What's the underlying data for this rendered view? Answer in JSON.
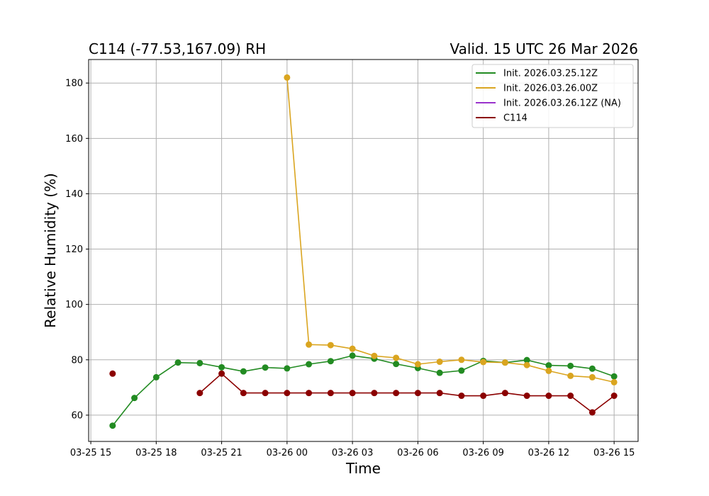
{
  "chart_data": {
    "type": "line",
    "title_left": "C114 (-77.53,167.09) RH",
    "title_right": "Valid. 15 UTC 26 Mar 2026",
    "xlabel": "Time",
    "ylabel": "Relative Humidity (%)",
    "x_ticks": [
      "03-25 15",
      "03-25 18",
      "03-25 21",
      "03-26 00",
      "03-26 03",
      "03-26 06",
      "03-26 09",
      "03-26 12",
      "03-26 15"
    ],
    "y_ticks": [
      "60",
      "80",
      "100",
      "120",
      "140",
      "160",
      "180"
    ],
    "xlim": [
      "2026-03-25 14:54",
      "2026-03-26 16:06"
    ],
    "ylim": [
      50.5,
      188.5
    ],
    "grid": true,
    "legend_position": "top-right",
    "series": [
      {
        "name": "Init. 2026.03.25.12Z",
        "color": "#228b22",
        "x": [
          "2026-03-25 16:00",
          "2026-03-25 17:00",
          "2026-03-25 18:00",
          "2026-03-25 19:00",
          "2026-03-25 20:00",
          "2026-03-25 21:00",
          "2026-03-25 22:00",
          "2026-03-25 23:00",
          "2026-03-26 00:00",
          "2026-03-26 01:00",
          "2026-03-26 02:00",
          "2026-03-26 03:00",
          "2026-03-26 04:00",
          "2026-03-26 05:00",
          "2026-03-26 06:00",
          "2026-03-26 07:00",
          "2026-03-26 08:00",
          "2026-03-26 09:00",
          "2026-03-26 10:00",
          "2026-03-26 11:00",
          "2026-03-26 12:00",
          "2026-03-26 13:00",
          "2026-03-26 14:00",
          "2026-03-26 15:00"
        ],
        "values": [
          56.2,
          66.2,
          73.7,
          79.0,
          78.8,
          77.3,
          75.8,
          77.2,
          76.9,
          78.4,
          79.5,
          81.5,
          80.4,
          78.5,
          77.0,
          75.3,
          76.1,
          79.6,
          79.0,
          79.9,
          78.0,
          77.8,
          76.8,
          74.0
        ]
      },
      {
        "name": "Init. 2026.03.26.00Z",
        "color": "#daa520",
        "x": [
          "2026-03-26 00:00",
          "2026-03-26 01:00",
          "2026-03-26 02:00",
          "2026-03-26 03:00",
          "2026-03-26 04:00",
          "2026-03-26 05:00",
          "2026-03-26 06:00",
          "2026-03-26 07:00",
          "2026-03-26 08:00",
          "2026-03-26 09:00",
          "2026-03-26 10:00",
          "2026-03-26 11:00",
          "2026-03-26 12:00",
          "2026-03-26 13:00",
          "2026-03-26 14:00",
          "2026-03-26 15:00"
        ],
        "values": [
          182.0,
          85.5,
          85.3,
          84.0,
          81.4,
          80.7,
          78.4,
          79.3,
          80.0,
          79.2,
          79.0,
          78.1,
          76.0,
          74.2,
          73.7,
          71.9
        ]
      },
      {
        "name": "Init. 2026.03.26.12Z (NA)",
        "color": "#9932cc",
        "x": [],
        "values": []
      },
      {
        "name": "C114",
        "color": "#8b0000",
        "x": [
          "2026-03-25 16:00",
          "2026-03-25 20:00",
          "2026-03-25 21:00",
          "2026-03-25 22:00",
          "2026-03-25 23:00",
          "2026-03-26 00:00",
          "2026-03-26 01:00",
          "2026-03-26 02:00",
          "2026-03-26 03:00",
          "2026-03-26 04:00",
          "2026-03-26 05:00",
          "2026-03-26 06:00",
          "2026-03-26 07:00",
          "2026-03-26 08:00",
          "2026-03-26 09:00",
          "2026-03-26 10:00",
          "2026-03-26 11:00",
          "2026-03-26 12:00",
          "2026-03-26 13:00",
          "2026-03-26 14:00",
          "2026-03-26 15:00"
        ],
        "values": [
          75,
          68,
          75,
          68,
          68,
          68,
          68,
          68,
          68,
          68,
          68,
          68,
          68,
          67,
          67,
          68,
          67,
          67,
          67,
          61,
          67
        ],
        "connected_from_index": 1
      }
    ]
  }
}
